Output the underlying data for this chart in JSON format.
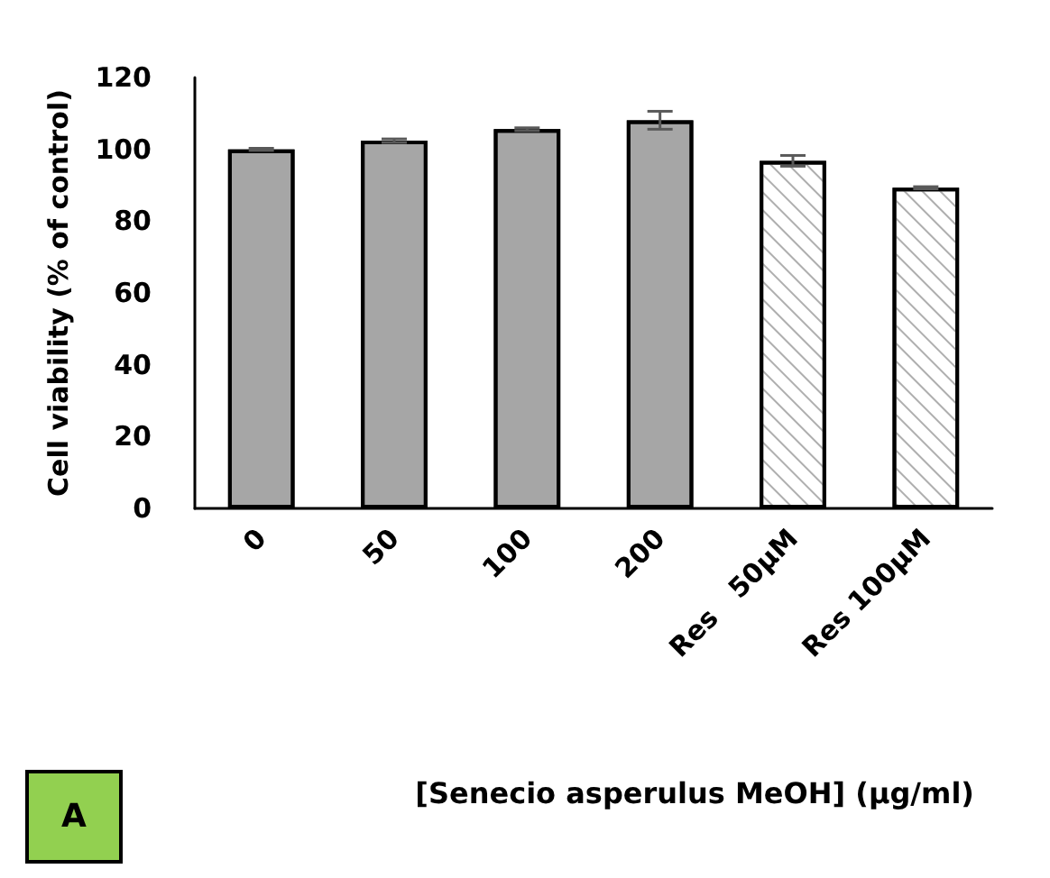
{
  "chart_data": {
    "type": "bar",
    "ylabel": "Cell viability (% of control)",
    "xlabel": "[Senecio asperulus MeOH] (µg/ml)",
    "categories": [
      "0",
      "50",
      "100",
      "200",
      "Res   50µM",
      "Res 100µM"
    ],
    "values": [
      100,
      102.4,
      105.6,
      108.1,
      96.8,
      89.3
    ],
    "errors": [
      0.3,
      0.5,
      0.4,
      2.5,
      1.5,
      0.3
    ],
    "colors": [
      "#a6a6a6",
      "#a6a6a6",
      "#a6a6a6",
      "#a6a6a6",
      "#ffffff",
      "#ffffff"
    ],
    "ylim": [
      0,
      120
    ],
    "yticks": [
      0,
      20,
      40,
      60,
      80,
      100,
      120
    ],
    "grid": false,
    "annotations": [
      "A"
    ]
  }
}
